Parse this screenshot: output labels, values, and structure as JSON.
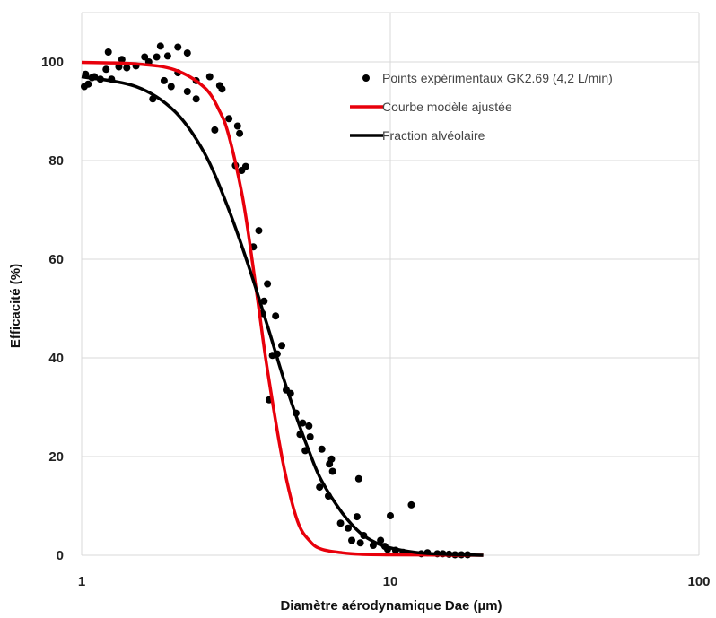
{
  "chart_data": {
    "type": "scatter",
    "xlabel": "Diamètre aérodynamique Dae (µm)",
    "ylabel": "Efficacité (%)",
    "xscale": "log",
    "xlim": [
      1,
      100
    ],
    "ylim": [
      0,
      110
    ],
    "grid": true,
    "legend_position": "top-right",
    "x_ticks": [
      "1",
      "10",
      "100"
    ],
    "y_ticks": [
      "0",
      "20",
      "40",
      "60",
      "80",
      "100"
    ],
    "series": [
      {
        "name": "Points expérimentaux GK2.69 (4,2 L/min)",
        "kind": "scatter",
        "color": "#000000",
        "points": [
          [
            1.02,
            95.0
          ],
          [
            1.03,
            97.5
          ],
          [
            1.05,
            95.5
          ],
          [
            1.08,
            96.8
          ],
          [
            1.1,
            97.0
          ],
          [
            1.15,
            96.5
          ],
          [
            1.2,
            98.5
          ],
          [
            1.22,
            102.0
          ],
          [
            1.25,
            96.5
          ],
          [
            1.32,
            99.0
          ],
          [
            1.35,
            100.5
          ],
          [
            1.4,
            98.8
          ],
          [
            1.5,
            99.2
          ],
          [
            1.6,
            101.0
          ],
          [
            1.65,
            100.0
          ],
          [
            1.7,
            92.5
          ],
          [
            1.75,
            101.0
          ],
          [
            1.8,
            103.2
          ],
          [
            1.85,
            96.2
          ],
          [
            1.9,
            101.2
          ],
          [
            1.95,
            95.0
          ],
          [
            2.05,
            103.0
          ],
          [
            2.05,
            97.8
          ],
          [
            2.2,
            101.8
          ],
          [
            2.2,
            94.0
          ],
          [
            2.35,
            92.5
          ],
          [
            2.35,
            96.2
          ],
          [
            2.6,
            97.0
          ],
          [
            2.7,
            86.2
          ],
          [
            2.8,
            95.2
          ],
          [
            2.85,
            94.5
          ],
          [
            3.0,
            88.5
          ],
          [
            3.15,
            79.0
          ],
          [
            3.2,
            87.0
          ],
          [
            3.25,
            85.5
          ],
          [
            3.3,
            78.0
          ],
          [
            3.4,
            78.8
          ],
          [
            3.6,
            62.5
          ],
          [
            3.75,
            65.8
          ],
          [
            3.85,
            49.0
          ],
          [
            3.9,
            51.5
          ],
          [
            4.0,
            55.0
          ],
          [
            4.05,
            31.5
          ],
          [
            4.15,
            40.5
          ],
          [
            4.25,
            48.5
          ],
          [
            4.3,
            40.8
          ],
          [
            4.45,
            42.5
          ],
          [
            4.6,
            33.5
          ],
          [
            4.75,
            32.8
          ],
          [
            4.95,
            28.8
          ],
          [
            5.1,
            24.5
          ],
          [
            5.2,
            26.8
          ],
          [
            5.3,
            21.2
          ],
          [
            5.45,
            26.2
          ],
          [
            5.5,
            24.0
          ],
          [
            5.9,
            13.8
          ],
          [
            6.0,
            21.5
          ],
          [
            6.3,
            12.0
          ],
          [
            6.35,
            18.5
          ],
          [
            6.45,
            19.5
          ],
          [
            6.5,
            17.0
          ],
          [
            6.9,
            6.5
          ],
          [
            7.3,
            5.5
          ],
          [
            7.5,
            3.0
          ],
          [
            7.8,
            7.8
          ],
          [
            7.9,
            15.5
          ],
          [
            8.0,
            2.5
          ],
          [
            8.2,
            4.0
          ],
          [
            8.8,
            2.0
          ],
          [
            9.3,
            3.0
          ],
          [
            9.6,
            1.8
          ],
          [
            9.8,
            1.2
          ],
          [
            10.0,
            8.0
          ],
          [
            10.4,
            1.0
          ],
          [
            11.0,
            0.6
          ],
          [
            11.7,
            10.2
          ],
          [
            12.6,
            0.3
          ],
          [
            13.2,
            0.5
          ],
          [
            14.2,
            0.3
          ],
          [
            14.8,
            0.3
          ],
          [
            15.5,
            0.2
          ],
          [
            16.2,
            0.1
          ],
          [
            17.0,
            0.1
          ],
          [
            17.8,
            0.1
          ]
        ]
      },
      {
        "name": "Courbe modèle ajustée",
        "kind": "line",
        "color": "#e8000b",
        "points": [
          [
            1.0,
            99.9
          ],
          [
            1.5,
            99.6
          ],
          [
            2.0,
            98.4
          ],
          [
            2.5,
            94.8
          ],
          [
            2.8,
            90.0
          ],
          [
            3.0,
            85.0
          ],
          [
            3.3,
            73.5
          ],
          [
            3.5,
            63.5
          ],
          [
            3.75,
            50.0
          ],
          [
            4.0,
            37.5
          ],
          [
            4.5,
            18.5
          ],
          [
            5.0,
            7.0
          ],
          [
            5.5,
            2.8
          ],
          [
            6.0,
            1.2
          ],
          [
            7.0,
            0.5
          ],
          [
            8.0,
            0.2
          ],
          [
            10.0,
            0.1
          ],
          [
            14.0,
            0.05
          ],
          [
            20.0,
            0.0
          ]
        ]
      },
      {
        "name": "Fraction alvéolaire",
        "kind": "line",
        "color": "#000000",
        "points": [
          [
            1.0,
            97.0
          ],
          [
            1.5,
            95.0
          ],
          [
            2.0,
            90.0
          ],
          [
            2.5,
            81.5
          ],
          [
            3.0,
            70.0
          ],
          [
            3.5,
            58.0
          ],
          [
            4.0,
            46.5
          ],
          [
            4.5,
            36.0
          ],
          [
            5.0,
            27.5
          ],
          [
            5.5,
            20.5
          ],
          [
            6.0,
            15.0
          ],
          [
            7.0,
            8.5
          ],
          [
            8.0,
            4.5
          ],
          [
            9.0,
            2.5
          ],
          [
            10.0,
            1.5
          ],
          [
            12.0,
            0.6
          ],
          [
            15.0,
            0.2
          ],
          [
            20.0,
            0.0
          ]
        ]
      }
    ]
  }
}
